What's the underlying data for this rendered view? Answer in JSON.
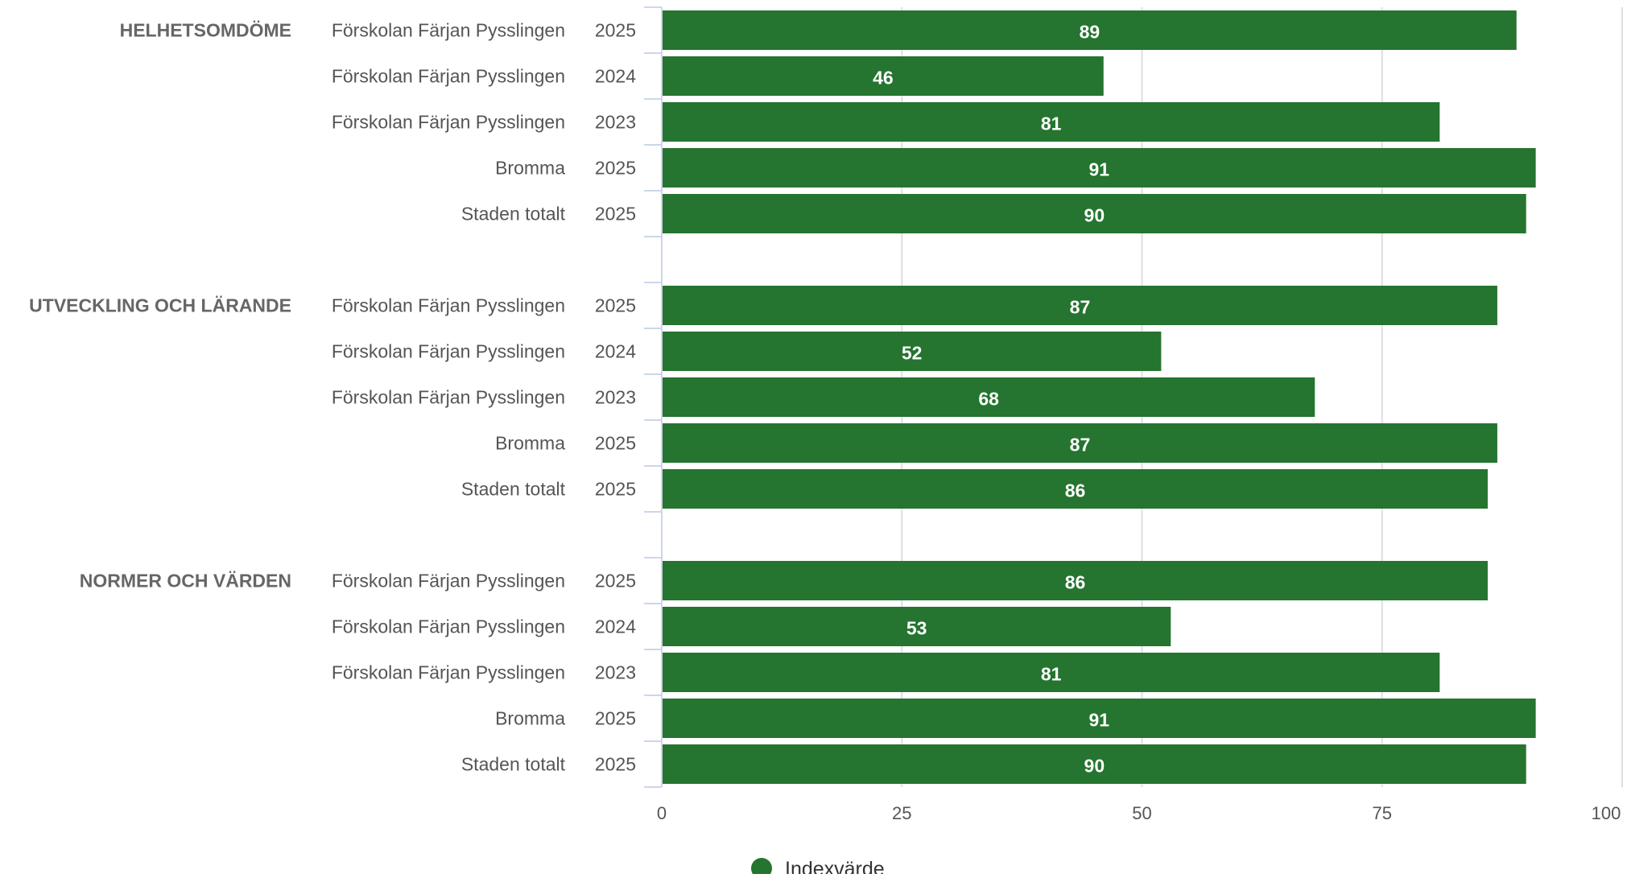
{
  "chart_data": {
    "type": "bar",
    "orientation": "horizontal",
    "xlim": [
      0,
      100
    ],
    "x_ticks": [
      0,
      25,
      50,
      75,
      100
    ],
    "grid": "vertical",
    "legend": {
      "position": "bottom",
      "items": [
        "Indexvärde"
      ]
    },
    "bar_color": "#25742f",
    "groups": [
      {
        "label": "HELHETSOMDÖME",
        "rows": [
          {
            "name": "Förskolan Färjan Pysslingen",
            "year": "2025",
            "value": 89
          },
          {
            "name": "Förskolan Färjan Pysslingen",
            "year": "2024",
            "value": 46
          },
          {
            "name": "Förskolan Färjan Pysslingen",
            "year": "2023",
            "value": 81
          },
          {
            "name": "Bromma",
            "year": "2025",
            "value": 91
          },
          {
            "name": "Staden totalt",
            "year": "2025",
            "value": 90
          }
        ]
      },
      {
        "label": "UTVECKLING OCH LÄRANDE",
        "rows": [
          {
            "name": "Förskolan Färjan Pysslingen",
            "year": "2025",
            "value": 87
          },
          {
            "name": "Förskolan Färjan Pysslingen",
            "year": "2024",
            "value": 52
          },
          {
            "name": "Förskolan Färjan Pysslingen",
            "year": "2023",
            "value": 68
          },
          {
            "name": "Bromma",
            "year": "2025",
            "value": 87
          },
          {
            "name": "Staden totalt",
            "year": "2025",
            "value": 86
          }
        ]
      },
      {
        "label": "NORMER OCH VÄRDEN",
        "rows": [
          {
            "name": "Förskolan Färjan Pysslingen",
            "year": "2025",
            "value": 86
          },
          {
            "name": "Förskolan Färjan Pysslingen",
            "year": "2024",
            "value": 53
          },
          {
            "name": "Förskolan Färjan Pysslingen",
            "year": "2023",
            "value": 81
          },
          {
            "name": "Bromma",
            "year": "2025",
            "value": 91
          },
          {
            "name": "Staden totalt",
            "year": "2025",
            "value": 90
          }
        ]
      }
    ]
  }
}
